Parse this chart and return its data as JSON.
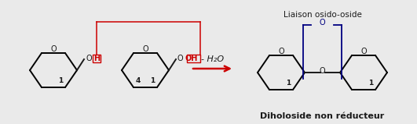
{
  "bg_color": "#eaeaea",
  "text_color_black": "#1a1a1a",
  "text_color_red": "#cc0000",
  "text_color_blue": "#000080",
  "box_color_red": "#cc0000",
  "bracket_color_blue": "#000080",
  "liaison_label": "Liaison osido-oside",
  "diholoside_label": "Diholoside non réducteur",
  "reaction_label": "- H₂O",
  "H_box_label": "H",
  "OH_box_label": "OH",
  "figsize": [
    5.31,
    1.59
  ],
  "dpi": 100
}
